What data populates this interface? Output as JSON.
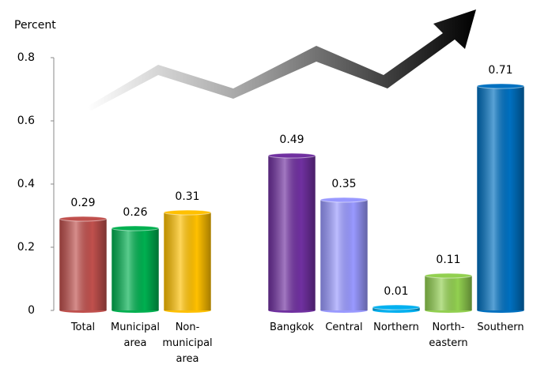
{
  "chart_data": {
    "type": "bar",
    "y_label": "Percent",
    "categories": [
      "Total",
      "Municipal\narea",
      "Non-\nmunicipal\narea",
      null,
      "Bangkok",
      "Central",
      "Northern",
      "North-\neastern",
      "Southern"
    ],
    "values": [
      0.29,
      0.26,
      0.31,
      null,
      0.49,
      0.35,
      0.01,
      0.11,
      0.71
    ],
    "colors": [
      "#c0504d",
      "#00b050",
      "#ffc000",
      null,
      "#7030a0",
      "#9999ff",
      "#00b0f0",
      "#92d050",
      "#0070c0"
    ],
    "ylim": [
      0,
      0.8
    ],
    "yticks": [
      0,
      0.2,
      0.4,
      0.6,
      0.8
    ]
  }
}
